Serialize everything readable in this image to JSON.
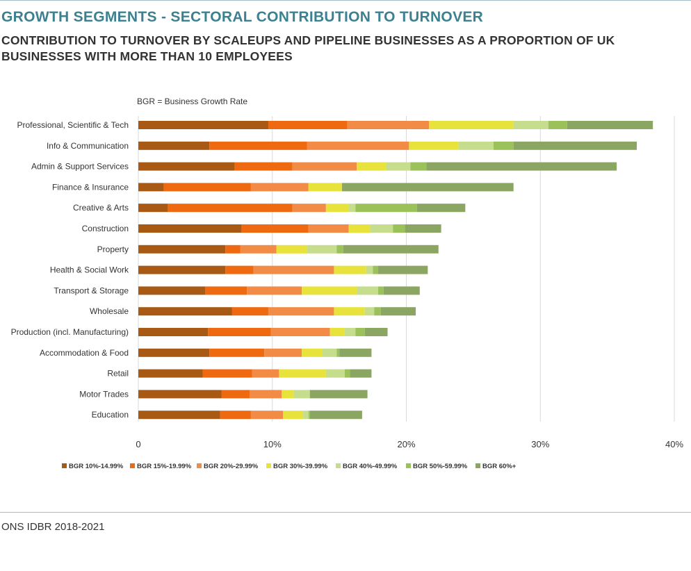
{
  "header": {
    "title": "GROWTH SEGMENTS - SECTORAL CONTRIBUTION TO TURNOVER",
    "subtitle": "CONTRIBUTION TO TURNOVER BY SCALEUPS AND PIPELINE BUSINESSES AS A PROPORTION OF UK BUSINESSES WITH MORE THAN 10 EMPLOYEES"
  },
  "footer": {
    "source": "ONS IDBR 2018-2021"
  },
  "chart_data": {
    "type": "bar",
    "orientation": "horizontal",
    "stacked": true,
    "note": "BGR = Business Growth Rate",
    "xlim": [
      0,
      40
    ],
    "xticks": [
      "0",
      "10%",
      "20%",
      "30%",
      "40%"
    ],
    "grid": true,
    "legend_position": "bottom",
    "categories": [
      "Professional, Scientific & Tech",
      "Info & Communication",
      "Admin & Support Services",
      "Finance & Insurance",
      "Creative & Arts",
      "Construction",
      "Property",
      "Health & Social Work",
      "Transport & Storage",
      "Wholesale",
      "Production (incl. Manufacturing)",
      "Accommodation & Food",
      "Retail",
      "Motor Trades",
      "Education"
    ],
    "series": [
      {
        "name": "BGR 10%-14.99%",
        "color": "#a85a14",
        "values": [
          9.7,
          5.3,
          7.2,
          1.9,
          2.2,
          7.7,
          6.5,
          6.5,
          5.0,
          7.0,
          5.2,
          5.3,
          4.8,
          6.2,
          6.1
        ]
      },
      {
        "name": "BGR 15%-19.99%",
        "color": "#ee6910",
        "values": [
          5.9,
          7.3,
          4.3,
          6.5,
          9.3,
          5.0,
          1.1,
          2.1,
          3.1,
          2.7,
          4.7,
          4.1,
          3.7,
          2.1,
          2.3
        ]
      },
      {
        "name": "BGR 20%-29.99%",
        "color": "#f18b46",
        "values": [
          6.1,
          7.6,
          4.8,
          4.3,
          2.5,
          3.0,
          2.7,
          6.0,
          4.1,
          4.9,
          4.4,
          2.8,
          2.0,
          2.4,
          2.4
        ]
      },
      {
        "name": "BGR 30%-39.99%",
        "color": "#e7e23c",
        "values": [
          6.3,
          3.7,
          2.2,
          2.5,
          1.7,
          1.6,
          2.3,
          2.4,
          4.1,
          2.3,
          1.1,
          1.5,
          3.5,
          0.9,
          1.5
        ]
      },
      {
        "name": "BGR 40%-49.99%",
        "color": "#c6dd8e",
        "values": [
          2.6,
          2.6,
          1.8,
          0.0,
          0.5,
          1.7,
          2.2,
          0.5,
          1.6,
          0.7,
          0.8,
          1.1,
          1.4,
          1.2,
          0.4
        ]
      },
      {
        "name": "BGR 50%-59.99%",
        "color": "#9ac15a",
        "values": [
          1.4,
          1.5,
          1.2,
          0.0,
          4.6,
          0.9,
          0.5,
          0.4,
          0.4,
          0.5,
          0.7,
          0.2,
          0.4,
          0.0,
          0.1
        ]
      },
      {
        "name": "BGR 60%+",
        "color": "#8ba662",
        "values": [
          6.4,
          9.2,
          14.2,
          12.8,
          3.6,
          2.7,
          7.1,
          3.7,
          2.7,
          2.6,
          1.7,
          2.4,
          1.6,
          4.3,
          3.9
        ]
      }
    ]
  }
}
